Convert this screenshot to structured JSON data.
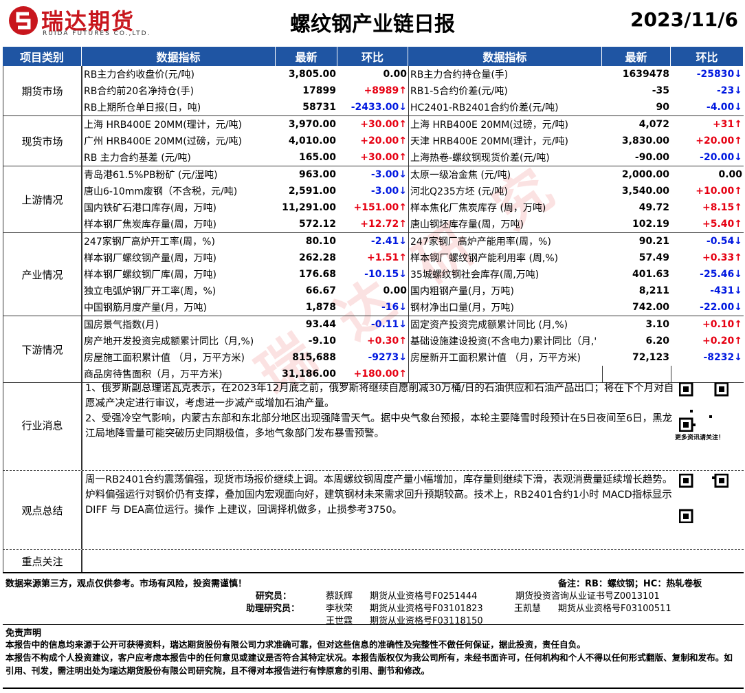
{
  "header": {
    "logo": "瑞达期货",
    "logo_en": "RUIDA FUTURES CO.,LTD.",
    "title": "螺纹钢产业链日报",
    "date": "2023/11/6"
  },
  "watermark": "瑞达研究",
  "table": {
    "header": [
      "项目类别",
      "数据指标",
      "最新",
      "环比",
      "数据指标",
      "最新",
      "环比"
    ],
    "sections": [
      {
        "category": "期货市场",
        "rows": [
          [
            "RB主力合约收盘价(元/吨)",
            "3,805.00",
            "0.00",
            "RB主力合约持仓量(手)",
            "1639478",
            "-25830↓"
          ],
          [
            "RB合约前20名净持仓(手)",
            "17899",
            "+8989↑",
            "RB1-5合约价差(元/吨)",
            "-35",
            "-23↓"
          ],
          [
            "RB上期所仓单日报(日，吨)",
            "58731",
            "-2433.00↓",
            "HC2401-RB2401合约价差(元/吨)",
            "90",
            "-4.00↓"
          ]
        ]
      },
      {
        "category": "现货市场",
        "rows": [
          [
            "上海 HRB400E 20MM(理计，元/吨)",
            "3,970.00",
            "+30.00↑",
            "上海 HRB400E 20MM(过磅，元/吨)",
            "4,072",
            "+31↑"
          ],
          [
            "广州 HRB400E 20MM(过磅，元/吨)",
            "4,010.00",
            "+20.00↑",
            "天津 HRB400E 20MM(理计，元/吨)",
            "3,830.00",
            "+20.00↑"
          ],
          [
            "RB 主力合约基差 (元/吨)",
            "165.00",
            "+30.00↑",
            "上海热卷-螺纹钢现货价差(元/吨)",
            "-90.00",
            "-20.00↓"
          ]
        ]
      },
      {
        "category": "上游情况",
        "rows": [
          [
            "青岛港61.5%PB粉矿 (元/湿吨)",
            "963.00",
            "-3.00↓",
            "太原一级冶金焦 (元/吨)",
            "2,000.00",
            "0.00"
          ],
          [
            "唐山6-10mm废钢（不含税，元/吨)",
            "2,591.00",
            "-3.00↓",
            "河北Q235方坯 (元/吨)",
            "3,540.00",
            "+10.00↑"
          ],
          [
            "国内铁矿石港口库存(周，万吨)",
            "11,291.00",
            "+151.00↑",
            "样本焦化厂焦炭库存 (周，万吨)",
            "49.72",
            "+8.15↑"
          ],
          [
            "样本钢厂焦炭库存量(周，万吨)",
            "572.12",
            "+12.72↑",
            "唐山钢坯库存量(周，万吨)",
            "102.19",
            "+5.40↑"
          ]
        ]
      },
      {
        "category": "产业情况",
        "rows": [
          [
            "247家钢厂高炉开工率(周，%)",
            "80.10",
            "-2.41↓",
            "247家钢厂高炉产能用率(周，%)",
            "90.21",
            "-0.54↓"
          ],
          [
            "样本钢厂螺纹钢产量(周，万吨)",
            "262.28",
            "+1.51↑",
            "样本钢厂螺纹钢产能利用率 (周,%)",
            "57.49",
            "+0.33↑"
          ],
          [
            "样本钢厂螺纹钢厂库(周，万吨)",
            "176.68",
            "-10.15↓",
            "35城螺纹钢社会库存(周,万吨)",
            "401.63",
            "-25.46↓"
          ],
          [
            "独立电弧炉钢厂开工率(周，%)",
            "66.67",
            "0.00",
            "国内粗钢产量(月，万吨)",
            "8,211",
            "-431↓"
          ],
          [
            "中国钢筋月度产量(月，万吨)",
            "1,878",
            "-16↓",
            "钢材净出口量(月，万吨)",
            "742.00",
            "-22.00↓"
          ]
        ]
      },
      {
        "category": "下游情况",
        "rows": [
          [
            "国房景气指数(月)",
            "93.44",
            "-0.11↓",
            "固定资产投资完成额累计同比 (月,%)",
            "3.10",
            "+0.10↑"
          ],
          [
            "房产地开发投资完成额累计同比（月,%)",
            "-9.10",
            "+0.30↑",
            "基础设施建设投资(不含电力)累计同比（月,'",
            "6.20",
            "+0.20↑"
          ],
          [
            "房屋施工面积累计值 （月，万平方米)",
            "815,688",
            "-9273↓",
            "房屋新开工面积累计值 （月，万平方米)",
            "72,123",
            "-8232↓"
          ],
          [
            "商品房待售面积（月，万平方米)",
            "31,186.00",
            "+180.00↑"
          ]
        ]
      }
    ]
  },
  "news": {
    "category": "行业消息",
    "paragraphs": [
      "1、俄罗斯副总理诺瓦克表示，在2023年12月底之前，俄罗斯将继续自愿削减30万桶/日的石油供应和石油产品出口；将在下个月对自愿减产决定进行审议，考虑进一步减产或增加石油产量。",
      "2、受强冷空气影响，内蒙古东部和东北部分地区出现强降雪天气。据中央气象台预报，本轮主要降雪时段预计在5日夜间至6日，黑龙江局地降雪量可能突破历史同期极值，多地气象部门发布暴雪预警。"
    ],
    "qr_caption": "更多资讯请关注！"
  },
  "summary": {
    "category": "观点总结",
    "text": "周一RB2401合约震荡偏强，现货市场报价继续上调。本周螺纹钢周度产量小幅增加，库存量则继续下滑，表观消费量延续增长趋势。炉料偏强运行对钢价仍有支撑，叠加国内宏观面向好，建筑钢材未来需求回升预期较高。技术上，RB2401合约1小时 MACD指标显示DIFF 与 DEA高位运行。操作 上建议，回调择机做多，止损参考3750。"
  },
  "focus": {
    "category": "重点关注"
  },
  "footer": {
    "source": "数据来源第三方，观点仅供参考。市场有风险，投资需谨慎！",
    "note": "备注：RB：螺纹钢；HC：热轧卷板",
    "researcher": {
      "role": "研究员：",
      "name": "蔡跃辉",
      "license": "期货从业资格号F0251444",
      "consult": "期货投资咨询从业证书号Z0013101"
    },
    "assistants": {
      "role": "助理研究员：",
      "people": [
        {
          "name": "李秋荣",
          "license": "期货从业资格号F03101823"
        },
        {
          "name": "王凯慧",
          "license": "期货从业资格号F03100511"
        },
        {
          "name": "王世霖",
          "license": "期货从业资格号F03118150"
        }
      ]
    },
    "disclaimer_title": "免责声明",
    "disclaimer": [
      "本报告中的信息均来源于公开可获得资料，瑞达期货股份有限公司力求准确可靠，但对这些信息的准确性及完整性不做任何保证，据此投资，责任自负。",
      "本报告不构成个人投资建议，客户应考虑本报告中的任何意见或建议是否符合其特定状况。本报告版权仅为我公司所有，未经书面许可，任何机构和个人不得以任何形式翻版、复制和发布。如引用、刊发，需注明出处为瑞达期货股份有限公司研究院，且不得对本报告进行有悖原意的引用、删节和修改。"
    ]
  }
}
